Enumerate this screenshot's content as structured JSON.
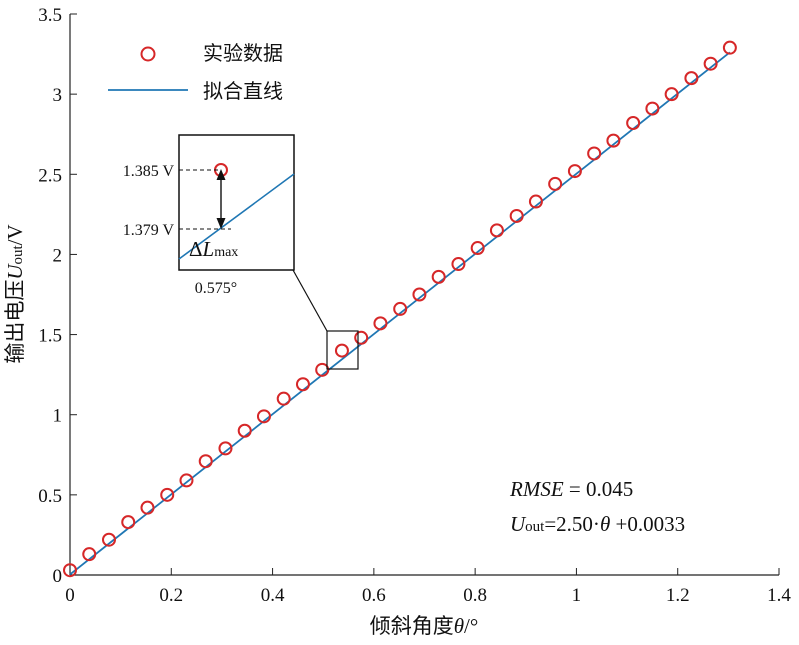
{
  "chart_data": {
    "type": "scatter",
    "xlabel": "倾斜角度θ/°",
    "ylabel": "输出电压U_out/V",
    "ylabel_parts": {
      "prefix": "输出电压",
      "var": "U",
      "sub": "out",
      "suffix": "/V"
    },
    "xlabel_parts": {
      "prefix": "倾斜角度",
      "var": "θ",
      "suffix": "/°"
    },
    "xlim": [
      0,
      1.4
    ],
    "ylim": [
      0,
      3.5
    ],
    "x_ticks": [
      "0",
      "0.2",
      "0.4",
      "0.6",
      "0.8",
      "1",
      "1.2",
      "1.4"
    ],
    "x_tick_values": [
      0,
      0.2,
      0.4,
      0.6,
      0.8,
      1.0,
      1.2,
      1.4
    ],
    "y_ticks": [
      "0",
      "0.5",
      "1",
      "1.5",
      "2",
      "2.5",
      "3",
      "3.5"
    ],
    "y_tick_values": [
      0,
      0.5,
      1.0,
      1.5,
      2.0,
      2.5,
      3.0,
      3.5
    ],
    "grid": false,
    "legend_position": "top-left",
    "series": [
      {
        "name": "实验数据",
        "kind": "scatter",
        "marker": "circle-open",
        "color": "#d62728",
        "x": [
          0.0,
          0.038,
          0.077,
          0.115,
          0.153,
          0.192,
          0.23,
          0.268,
          0.307,
          0.345,
          0.383,
          0.422,
          0.46,
          0.498,
          0.537,
          0.575,
          0.613,
          0.652,
          0.69,
          0.728,
          0.767,
          0.805,
          0.843,
          0.882,
          0.92,
          0.958,
          0.997,
          1.035,
          1.073,
          1.112,
          1.15,
          1.188,
          1.227,
          1.265,
          1.303
        ],
        "y": [
          0.03,
          0.13,
          0.22,
          0.33,
          0.42,
          0.5,
          0.59,
          0.71,
          0.79,
          0.9,
          0.99,
          1.1,
          1.19,
          1.28,
          1.4,
          1.48,
          1.57,
          1.66,
          1.75,
          1.86,
          1.94,
          2.04,
          2.15,
          2.24,
          2.33,
          2.44,
          2.52,
          2.63,
          2.71,
          2.82,
          2.91,
          3.0,
          3.1,
          3.19,
          3.29
        ]
      },
      {
        "name": "拟合直线",
        "kind": "line",
        "color": "#1f77b4",
        "slope": 2.5,
        "intercept": 0.0033,
        "x_range": [
          0,
          1.303
        ]
      }
    ],
    "annotations": {
      "rmse_var": "RMSE",
      "rmse_value": " = 0.045",
      "fit_var": "U",
      "fit_sub": "out",
      "fit_expr": "=2.50·",
      "fit_theta": "θ",
      "fit_tail": " +0.0033"
    },
    "inset": {
      "upper_label": "1.385 V",
      "lower_label": "1.379 V",
      "x_label": "0.575°",
      "delta_symbol": "Δ",
      "delta_var": "L",
      "delta_sub": "max"
    }
  }
}
